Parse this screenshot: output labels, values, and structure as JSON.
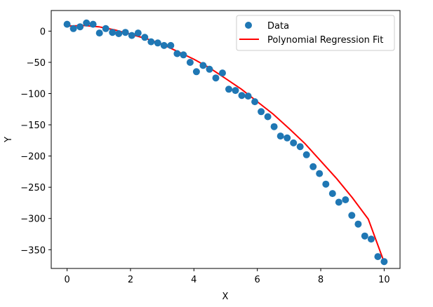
{
  "chart_data": {
    "type": "scatter",
    "title": "",
    "xlabel": "X",
    "ylabel": "Y",
    "xlim": [
      -0.5,
      10.5
    ],
    "ylim": [
      -380,
      33
    ],
    "x_ticks": [
      0,
      2,
      4,
      6,
      8,
      10
    ],
    "x_tick_labels": [
      "0",
      "2",
      "4",
      "6",
      "8",
      "10"
    ],
    "y_ticks": [
      0,
      -50,
      -100,
      -150,
      -200,
      -250,
      -300,
      -350
    ],
    "y_tick_labels": [
      "0",
      "−50",
      "−100",
      "−150",
      "−200",
      "−250",
      "−300",
      "−350"
    ],
    "grid": false,
    "legend": {
      "location": "upper-right",
      "entries": [
        "Data",
        "Polynomial Regression Fit"
      ]
    },
    "series": [
      {
        "name": "Data",
        "kind": "scatter",
        "color": "#1f77b4",
        "x": [
          0.0,
          0.2,
          0.41,
          0.61,
          0.82,
          1.02,
          1.22,
          1.43,
          1.63,
          1.84,
          2.04,
          2.24,
          2.45,
          2.65,
          2.86,
          3.06,
          3.27,
          3.47,
          3.67,
          3.88,
          4.08,
          4.29,
          4.49,
          4.69,
          4.9,
          5.1,
          5.31,
          5.51,
          5.71,
          5.92,
          6.12,
          6.33,
          6.53,
          6.73,
          6.94,
          7.14,
          7.35,
          7.55,
          7.76,
          7.96,
          8.16,
          8.37,
          8.57,
          8.78,
          8.98,
          9.18,
          9.39,
          9.59,
          9.8,
          10.0
        ],
        "y": [
          11,
          4,
          7,
          13,
          11,
          -3,
          4,
          -2,
          -4,
          -2,
          -7,
          -3,
          -10,
          -17,
          -19,
          -23,
          -23,
          -36,
          -38,
          -50,
          -65,
          -55,
          -61,
          -75,
          -67,
          -93,
          -95,
          -103,
          -104,
          -113,
          -129,
          -137,
          -153,
          -168,
          -171,
          -179,
          -185,
          -198,
          -217,
          -228,
          -245,
          -260,
          -274,
          -270,
          -295,
          -309,
          -328,
          -333,
          -361,
          -369
        ]
      },
      {
        "name": "Polynomial Regression Fit",
        "kind": "line",
        "color": "#ff0000",
        "x": [
          0,
          0.5,
          1,
          1.5,
          2,
          2.5,
          3,
          3.5,
          4,
          4.5,
          5,
          5.5,
          6,
          6.5,
          7,
          7.5,
          8,
          8.5,
          9,
          9.5,
          10
        ],
        "y": [
          8,
          9,
          7,
          2,
          -5,
          -12,
          -21,
          -33,
          -45,
          -59,
          -76,
          -93,
          -113,
          -133,
          -156,
          -180,
          -208,
          -236,
          -267,
          -301,
          -370
        ]
      }
    ]
  }
}
